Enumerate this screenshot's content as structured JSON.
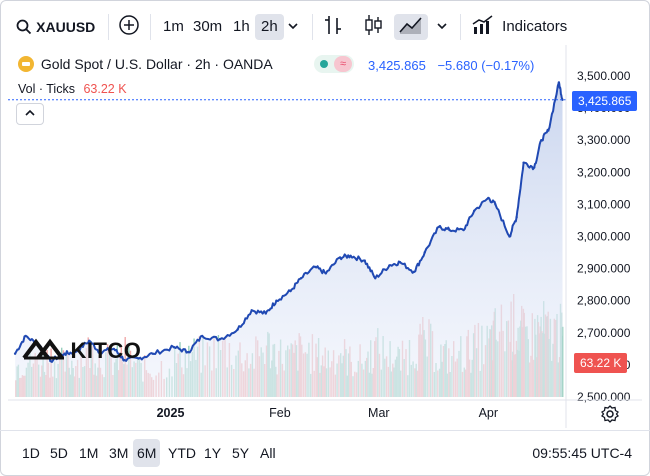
{
  "toolbar": {
    "symbol": "XAUUSD",
    "intervals": [
      "1m",
      "30m",
      "1h",
      "2h"
    ],
    "active_interval": "2h",
    "indicators_label": "Indicators"
  },
  "legend": {
    "title": "Gold Spot / U.S. Dollar · 2h · OANDA",
    "last_price": "3,425.865",
    "change": "−5.680 (−0.17%)",
    "vol_label": "Vol · Ticks",
    "vol_value": "63.22 K"
  },
  "watermark": "KITCO",
  "price_tag": "3,425.865",
  "volume_tag": "63.22 K",
  "ranges": [
    "1D",
    "5D",
    "1M",
    "3M",
    "6M",
    "YTD",
    "1Y",
    "5Y",
    "All"
  ],
  "active_range": "6M",
  "clock": "09:55:45 UTC-4",
  "colors": {
    "line": "#2049b3",
    "area_top": "#c8d4ee",
    "up": "#84c7b2",
    "down": "#ef9a9a",
    "price_tag": "#2962ff",
    "volume_tag": "#ef5350"
  },
  "icons": [
    "search-icon",
    "add-symbol-icon",
    "chevron-down-icon",
    "bar-chart-icon",
    "candles-icon",
    "area-chart-icon",
    "indicators-icon",
    "settings-icon"
  ],
  "chart_data": {
    "type": "area",
    "series": [
      {
        "name": "Gold Spot / U.S. Dollar",
        "x": [
          "2024-11-18",
          "2024-11-21",
          "2024-11-25",
          "2024-11-28",
          "2024-12-02",
          "2024-12-05",
          "2024-12-09",
          "2024-12-12",
          "2024-12-16",
          "2024-12-19",
          "2024-12-23",
          "2024-12-27",
          "2025-01-02",
          "2025-01-06",
          "2025-01-10",
          "2025-01-15",
          "2025-01-20",
          "2025-01-24",
          "2025-01-28",
          "2025-01-31",
          "2025-02-04",
          "2025-02-07",
          "2025-02-11",
          "2025-02-14",
          "2025-02-18",
          "2025-02-21",
          "2025-02-25",
          "2025-02-28",
          "2025-03-04",
          "2025-03-07",
          "2025-03-11",
          "2025-03-14",
          "2025-03-18",
          "2025-03-21",
          "2025-03-25",
          "2025-03-28",
          "2025-04-01",
          "2025-04-03",
          "2025-04-07",
          "2025-04-09",
          "2025-04-11",
          "2025-04-14",
          "2025-04-16",
          "2025-04-18",
          "2025-04-21",
          "2025-04-22"
        ],
        "values": [
          2635,
          2690,
          2660,
          2612,
          2635,
          2640,
          2675,
          2640,
          2650,
          2615,
          2620,
          2635,
          2655,
          2640,
          2690,
          2680,
          2710,
          2770,
          2760,
          2800,
          2830,
          2870,
          2905,
          2885,
          2935,
          2940,
          2925,
          2870,
          2910,
          2920,
          2890,
          2950,
          3030,
          3020,
          3020,
          3080,
          3120,
          3100,
          3000,
          3060,
          3230,
          3215,
          3300,
          3330,
          3480,
          3425.865
        ]
      }
    ],
    "volume": [
      34,
      41,
      38,
      45,
      36,
      40,
      52,
      44,
      39,
      47,
      33,
      30,
      42,
      48,
      46,
      55,
      50,
      43,
      58,
      49,
      45,
      53,
      47,
      44,
      51,
      39,
      42,
      55,
      46,
      41,
      57,
      63,
      48,
      44,
      51,
      56,
      59,
      72,
      81,
      78,
      66,
      70,
      76,
      69,
      74,
      63.22
    ],
    "x_ticks": [
      "2025",
      "Feb",
      "Mar",
      "Apr"
    ],
    "y_ticks": [
      "2,500.000",
      "2,600.000",
      "2,700.000",
      "2,800.000",
      "2,900.000",
      "3,000.000",
      "3,100.000",
      "3,200.000",
      "3,300.000",
      "3,400.000",
      "3,500.000"
    ],
    "ylim": [
      2500,
      3500
    ],
    "grid": false,
    "xlabel": "",
    "ylabel": ""
  }
}
